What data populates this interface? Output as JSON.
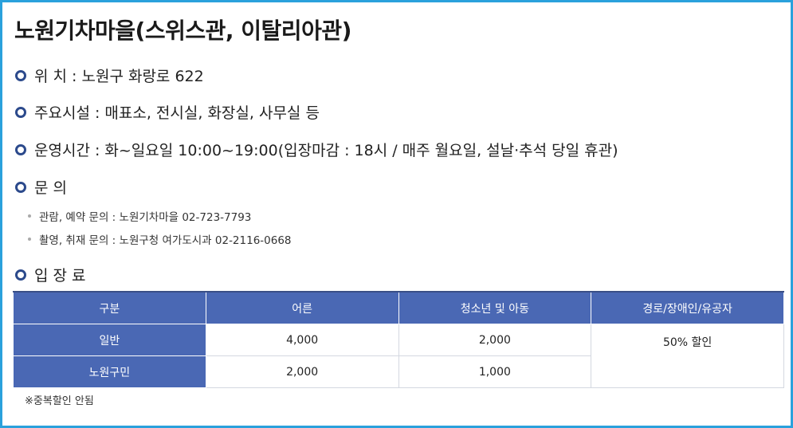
{
  "title": "노원기차마을(스위스관, 이탈리아관)",
  "info": [
    {
      "text": "위 치 : 노원구 화랑로 622"
    },
    {
      "text": "주요시설 : 매표소, 전시실, 화장실, 사무실 등"
    },
    {
      "text": "운영시간 : 화~일요일 10:00~19:00(입장마감 : 18시 / 매주 월요일, 설날·추석 당일 휴관)"
    },
    {
      "text": "문 의"
    }
  ],
  "contacts": [
    "관람, 예약 문의 : 노원기차마을 02-723-7793",
    "촬영, 취재 문의 : 노원구청 여가도시과 02-2116-0668"
  ],
  "fee_heading": "입 장 료",
  "fee_table": {
    "headers": [
      "구분",
      "어른",
      "청소년 및 아동",
      "경로/장애인/유공자"
    ],
    "rows": [
      [
        "일반",
        "4,000",
        "2,000",
        "50% 할인"
      ],
      [
        "노원구민",
        "2,000",
        "1,000",
        ""
      ]
    ]
  },
  "note": "※중복할인 안됨",
  "colors": {
    "frame": "#2aa1dc",
    "bullet": "#2c4a8c",
    "table_header": "#4a68b4"
  }
}
